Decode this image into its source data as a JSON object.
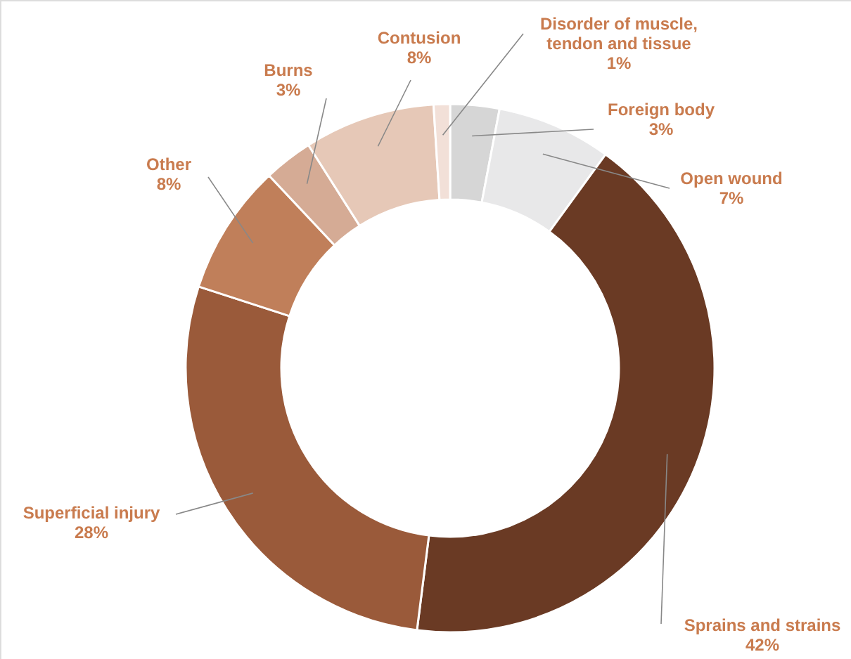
{
  "chart_data": {
    "type": "donut",
    "categories": [
      "Foreign body",
      "Open wound",
      "Sprains and strains",
      "Superficial injury",
      "Other",
      "Burns",
      "Contusion",
      "Disorder of muscle,\ntendon and tissue"
    ],
    "values": [
      3,
      7,
      42,
      28,
      8,
      3,
      8,
      1
    ],
    "value_labels": [
      "3%",
      "7%",
      "42%",
      "28%",
      "8%",
      "3%",
      "8%",
      "1%"
    ],
    "colors": [
      "#d6d6d6",
      "#e8e8e9",
      "#6a3a24",
      "#9a5a3a",
      "#c07f5a",
      "#d5ab95",
      "#e6c8b7",
      "#f2e0d8"
    ]
  }
}
